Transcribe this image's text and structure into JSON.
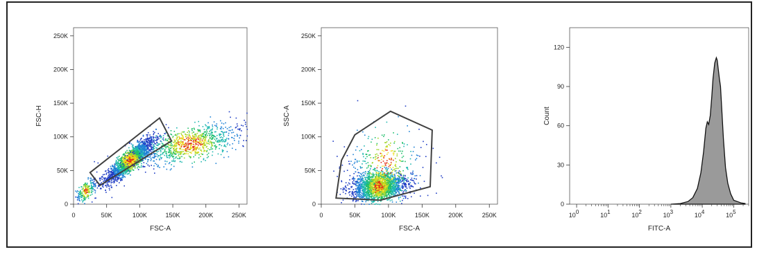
{
  "colors": {
    "frame": "#222222",
    "gate": "#404040",
    "histogram_fill": "#9a9a9a",
    "density_low": "#1f3cc4",
    "density_mid": "#1fbf6a",
    "density_high": "#f0e020",
    "density_peak": "#e03018"
  },
  "chart_data": [
    {
      "type": "scatter",
      "xlabel": "FSC-A",
      "ylabel": "FSC-H",
      "xlim": [
        0,
        262144
      ],
      "ylim": [
        0,
        262144
      ],
      "xticks": [
        0,
        50000,
        100000,
        150000,
        200000,
        250000
      ],
      "xticklabels": [
        "0",
        "50K",
        "100K",
        "150K",
        "200K",
        "250K"
      ],
      "yticks": [
        0,
        50000,
        100000,
        150000,
        200000,
        250000
      ],
      "yticklabels": [
        "0",
        "50K",
        "100K",
        "150K",
        "200K",
        "250K"
      ],
      "gate": {
        "shape": "polygon",
        "vertices": [
          [
            25000,
            47000
          ],
          [
            130000,
            128000
          ],
          [
            148000,
            94000
          ],
          [
            40000,
            28000
          ]
        ]
      },
      "populations": [
        {
          "center": [
            85000,
            66000
          ],
          "count": 1800,
          "spread": [
            18000,
            8000
          ],
          "slope": 0.78
        },
        {
          "center": [
            175000,
            90000
          ],
          "count": 1000,
          "spread": [
            45000,
            12000
          ],
          "slope": 0.22
        },
        {
          "center": [
            18000,
            20000
          ],
          "count": 220,
          "spread": [
            9000,
            6000
          ],
          "slope": 0.7
        }
      ]
    },
    {
      "type": "scatter",
      "xlabel": "FSC-A",
      "ylabel": "SSC-A",
      "xlim": [
        0,
        262144
      ],
      "ylim": [
        0,
        262144
      ],
      "xticks": [
        0,
        50000,
        100000,
        150000,
        200000,
        250000
      ],
      "xticklabels": [
        "0",
        "50K",
        "100K",
        "150K",
        "200K",
        "250K"
      ],
      "yticks": [
        0,
        50000,
        100000,
        150000,
        200000,
        250000
      ],
      "yticklabels": [
        "0",
        "50K",
        "100K",
        "150K",
        "200K",
        "250K"
      ],
      "gate": {
        "shape": "polygon",
        "vertices": [
          [
            22000,
            9000
          ],
          [
            30000,
            65000
          ],
          [
            50000,
            103000
          ],
          [
            103000,
            138000
          ],
          [
            165000,
            110000
          ],
          [
            162000,
            26000
          ],
          [
            88000,
            6000
          ]
        ]
      },
      "populations": [
        {
          "center": [
            85000,
            27000
          ],
          "count": 1900,
          "spread": [
            20000,
            10000
          ],
          "slope": 0.1
        },
        {
          "center": [
            95000,
            60000
          ],
          "count": 380,
          "spread": [
            30000,
            25000
          ],
          "slope": 0.0
        }
      ]
    },
    {
      "type": "area",
      "xlabel": "FITC-A",
      "ylabel": "Count",
      "xscale": "log",
      "xlim": [
        0.6,
        300000
      ],
      "ylim": [
        0,
        135
      ],
      "xticks": [
        1,
        10,
        100,
        1000,
        10000,
        100000
      ],
      "xticklabels": [
        [
          "10",
          "0"
        ],
        [
          "10",
          "1"
        ],
        [
          "10",
          "2"
        ],
        [
          "10",
          "3"
        ],
        [
          "10",
          "4"
        ],
        [
          "10",
          "5"
        ]
      ],
      "yticks": [
        0,
        30,
        60,
        90,
        120
      ],
      "yticklabels": [
        "0",
        "30",
        "60",
        "90",
        "120"
      ],
      "x": [
        1000,
        2000,
        3500,
        5000,
        7000,
        9000,
        11000,
        13000,
        14500,
        16000,
        18000,
        20000,
        22000,
        25000,
        28000,
        30000,
        32000,
        35000,
        38000,
        42000,
        47000,
        55000,
        65000,
        80000,
        100000,
        130000,
        170000,
        230000
      ],
      "y": [
        0,
        0.5,
        2,
        5,
        12,
        24,
        40,
        58,
        63,
        61,
        68,
        82,
        96,
        108,
        112,
        110,
        104,
        96,
        90,
        72,
        50,
        28,
        16,
        8,
        3,
        2,
        1,
        0.5
      ]
    }
  ]
}
